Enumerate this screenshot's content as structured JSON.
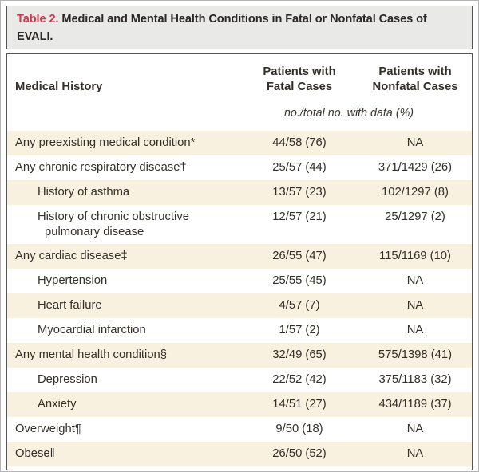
{
  "title": {
    "label": "Table 2.",
    "text": " Medical and Mental Health Conditions in Fatal or Nonfatal Cases of EVALI."
  },
  "columns": {
    "history": "Medical History",
    "fatal": "Patients with\nFatal Cases",
    "nonfatal": "Patients with\nNonfatal Cases"
  },
  "units_note": "no./total no. with data (%)",
  "colors": {
    "accent_red": "#d0394e",
    "row_shade": "#f8f1e0",
    "title_bg": "#e9e9e7",
    "box_border": "#545454",
    "text": "#332f29"
  },
  "rows": [
    {
      "label": "Any preexisting medical condition*",
      "indent": 0,
      "fatal": "44/58 (76)",
      "nonfatal": "NA",
      "shaded": true
    },
    {
      "label": "Any chronic respiratory disease†",
      "indent": 0,
      "fatal": "25/57 (44)",
      "nonfatal": "371/1429 (26)",
      "shaded": false
    },
    {
      "label": "History of asthma",
      "indent": 1,
      "fatal": "13/57 (23)",
      "nonfatal": "102/1297 (8)",
      "shaded": true
    },
    {
      "label": "History of chronic obstructive pulmonary disease",
      "indent": 1,
      "fatal": "12/57 (21)",
      "nonfatal": "25/1297 (2)",
      "shaded": false
    },
    {
      "label": "Any cardiac disease‡",
      "indent": 0,
      "fatal": "26/55 (47)",
      "nonfatal": "115/1169 (10)",
      "shaded": true
    },
    {
      "label": "Hypertension",
      "indent": 1,
      "fatal": "25/55 (45)",
      "nonfatal": "NA",
      "shaded": false
    },
    {
      "label": "Heart failure",
      "indent": 1,
      "fatal": "4/57 (7)",
      "nonfatal": "NA",
      "shaded": true
    },
    {
      "label": "Myocardial infarction",
      "indent": 1,
      "fatal": "1/57 (2)",
      "nonfatal": "NA",
      "shaded": false
    },
    {
      "label": "Any mental health condition§",
      "indent": 0,
      "fatal": "32/49 (65)",
      "nonfatal": "575/1398 (41)",
      "shaded": true
    },
    {
      "label": "Depression",
      "indent": 1,
      "fatal": "22/52 (42)",
      "nonfatal": "375/1183 (32)",
      "shaded": false
    },
    {
      "label": "Anxiety",
      "indent": 1,
      "fatal": "14/51 (27)",
      "nonfatal": "434/1189 (37)",
      "shaded": true
    },
    {
      "label": "Overweight¶",
      "indent": 0,
      "fatal": "9/50 (18)",
      "nonfatal": "NA",
      "shaded": false
    },
    {
      "label": "Obese‖",
      "indent": 0,
      "fatal": "26/50 (52)",
      "nonfatal": "NA",
      "shaded": true
    }
  ]
}
